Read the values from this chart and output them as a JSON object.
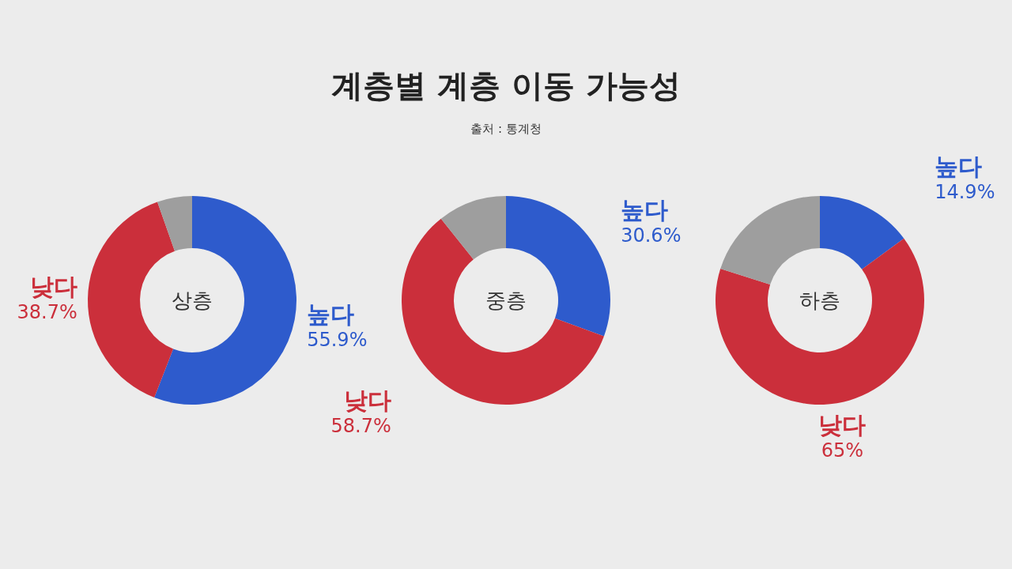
{
  "chart_data": [
    {
      "type": "donut",
      "annotations": [
        "상층"
      ],
      "categories": [
        "높다",
        "낮다",
        null
      ],
      "values": [
        55.9,
        38.7,
        5.4
      ],
      "colors": [
        "#2e5bcc",
        "#cb2f3b",
        "#9e9e9e"
      ],
      "value_labels": [
        "55.9%",
        "38.7%",
        null
      ]
    },
    {
      "type": "donut",
      "title": "계층별 계층 이동 가능성",
      "annotations": [
        "중층",
        "출처 : 통계청"
      ],
      "categories": [
        "높다",
        "낮다",
        null
      ],
      "values": [
        30.6,
        58.7,
        10.7
      ],
      "colors": [
        "#2e5bcc",
        "#cb2f3b",
        "#9e9e9e"
      ],
      "value_labels": [
        "30.6%",
        "58.7%",
        null
      ]
    },
    {
      "type": "donut",
      "annotations": [
        "하층"
      ],
      "categories": [
        "높다",
        "낮다",
        null
      ],
      "values": [
        14.9,
        65,
        20.1
      ],
      "colors": [
        "#2e5bcc",
        "#cb2f3b",
        "#9e9e9e"
      ],
      "value_labels": [
        "14.9%",
        "65%",
        null
      ]
    }
  ]
}
